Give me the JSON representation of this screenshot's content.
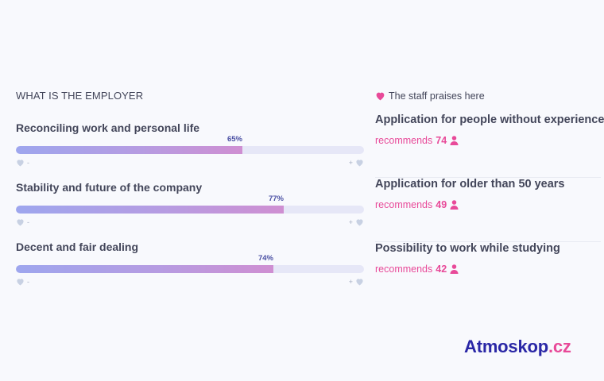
{
  "employer": {
    "section_title": "WHAT IS THE EMPLOYER",
    "metrics": [
      {
        "label": "Reconciling work and personal life",
        "percent_label": "65%",
        "percent": 65
      },
      {
        "label": "Stability and future of the company",
        "percent_label": "77%",
        "percent": 77
      },
      {
        "label": "Decent and fair dealing",
        "percent_label": "74%",
        "percent": 74
      }
    ],
    "minus_sign": "-",
    "plus_sign": "+"
  },
  "praises": {
    "header": "The staff praises here",
    "recommends_label": "recommends",
    "items": [
      {
        "title": "Application for people without experience",
        "count": "74"
      },
      {
        "title": "Application for older than 50 years",
        "count": "49"
      },
      {
        "title": "Possibility to work while studying",
        "count": "42"
      }
    ]
  },
  "logo": {
    "main": "Atmoskop",
    "tld": ".cz"
  },
  "colors": {
    "accent_pink": "#e84a99",
    "brand_navy": "#2a27a6",
    "bar_track": "#e6e7f7",
    "heart_gray": "#c8d1e3"
  }
}
